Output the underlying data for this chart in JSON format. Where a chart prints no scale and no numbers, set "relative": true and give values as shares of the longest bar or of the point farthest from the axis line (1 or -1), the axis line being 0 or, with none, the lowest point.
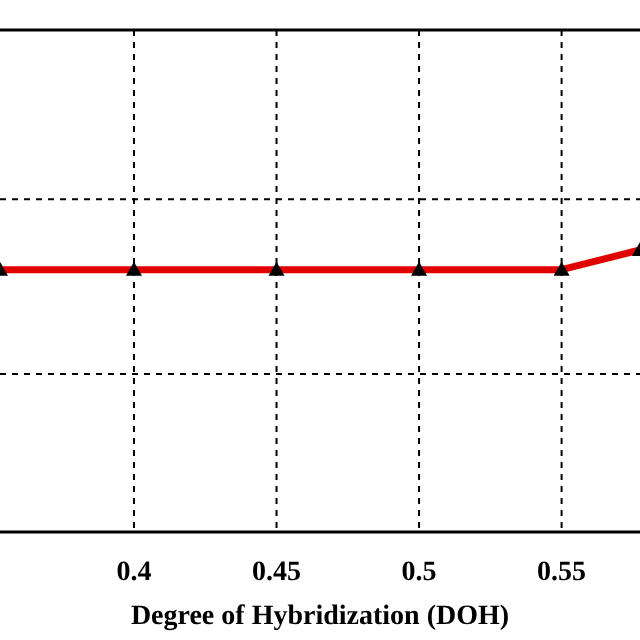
{
  "chart_data": {
    "type": "line",
    "xlabel": "Degree of Hybridization (DOH)",
    "relative": true,
    "x": [
      0.353,
      0.4,
      0.45,
      0.5,
      0.55,
      0.5775
    ],
    "series": [
      {
        "color": "#e00000",
        "values": [
          0.93,
          0.93,
          0.93,
          0.93,
          0.93,
          1
        ]
      }
    ],
    "xlim": [
      0.353,
      0.5775
    ],
    "xticks": [
      0.4,
      0.45,
      0.5,
      0.55
    ],
    "grid": true,
    "marker": "triangle",
    "line_style": "solid"
  }
}
